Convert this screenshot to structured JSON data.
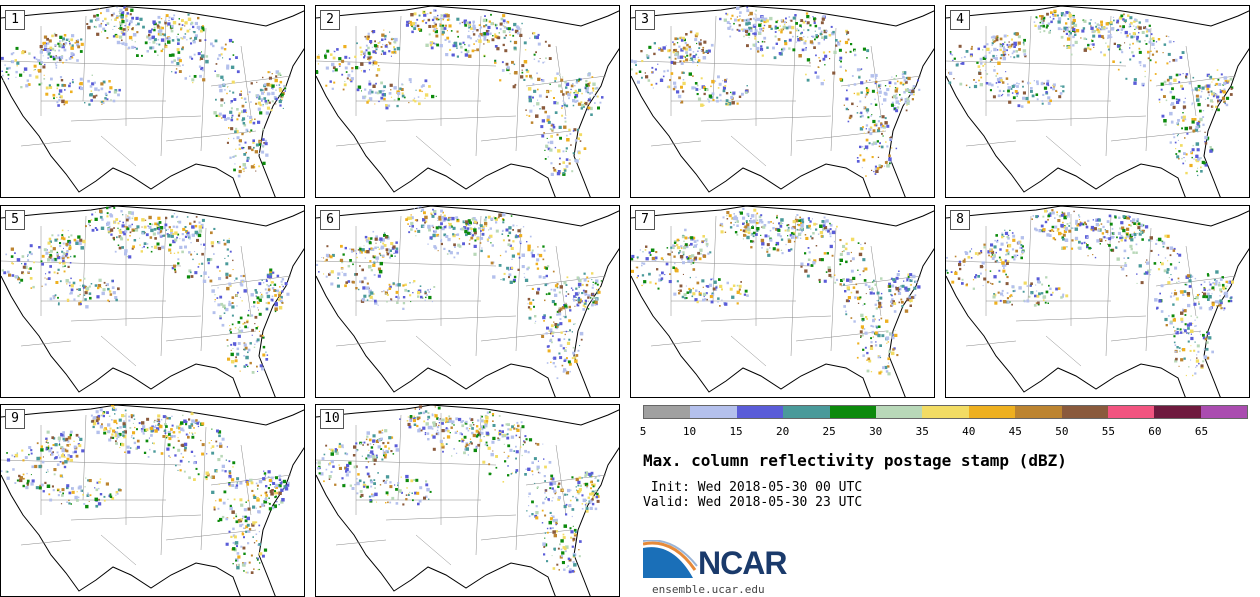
{
  "panels": [
    "1",
    "2",
    "3",
    "4",
    "5",
    "6",
    "7",
    "8",
    "9",
    "10"
  ],
  "colorbar": {
    "ticks": [
      "5",
      "10",
      "15",
      "20",
      "25",
      "30",
      "35",
      "40",
      "45",
      "50",
      "55",
      "60",
      "65"
    ],
    "colors": [
      "#a0a0a0",
      "#b4c0ec",
      "#5a5cd8",
      "#4a9a9a",
      "#0c8a0c",
      "#b8d8b8",
      "#f2dc64",
      "#eeb020",
      "#bc8430",
      "#8a5a3c",
      "#f25480",
      "#6e1a3e",
      "#aa4cb0"
    ]
  },
  "title": "Max. column reflectivity postage stamp (dBZ)",
  "init": " Init: Wed 2018-05-30 00 UTC",
  "valid": "Valid: Wed 2018-05-30 23 UTC",
  "logo": {
    "text": "NCAR",
    "url": "ensemble.ucar.edu"
  }
}
